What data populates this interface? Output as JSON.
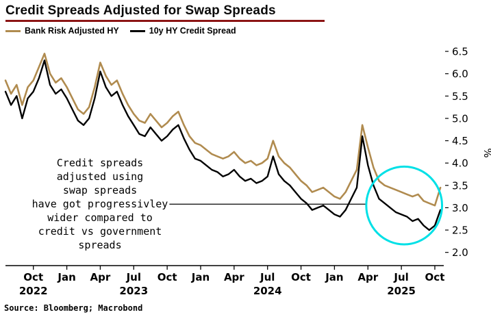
{
  "title": "Credit Spreads Adjusted for Swap Spreads",
  "legend": [
    {
      "label": "Bank Risk Adjusted HY",
      "color": "#B08B4F"
    },
    {
      "label": "10y HY Credit Spread",
      "color": "#000000"
    }
  ],
  "annotation": {
    "lines": [
      "Credit spreads",
      "adjusted using",
      "swap spreads",
      "have got progressivley",
      "wider compared to",
      "credit vs government",
      "spreads"
    ]
  },
  "source": "Source: Bloomberg; Macrobond",
  "accent_colors": {
    "title_underline": "#8B1414",
    "highlight": "#00E0E6"
  },
  "chart_data": {
    "type": "line",
    "title": "Credit Spreads Adjusted for Swap Spreads",
    "ylabel": "%",
    "ylim": [
      2.0,
      6.5
    ],
    "grid": false,
    "legend_position": "top-left",
    "y_ticks": [
      6.5,
      6.0,
      5.5,
      5.0,
      4.5,
      4.0,
      3.5,
      3.0,
      2.5,
      2.0
    ],
    "x_ticks": [
      "Oct",
      "Jan",
      "Apr",
      "Jul",
      "Oct",
      "Jan",
      "Apr",
      "Jul",
      "Oct",
      "Jan",
      "Apr",
      "Jul",
      "Oct"
    ],
    "x_years": [
      {
        "label": "2022",
        "tick": 0
      },
      {
        "label": "2023",
        "tick": 3
      },
      {
        "label": "2024",
        "tick": 7
      },
      {
        "label": "2025",
        "tick": 11
      }
    ],
    "series": [
      {
        "name": "Bank Risk Adjusted HY",
        "color": "#B08B4F",
        "width": 2.6,
        "values": [
          5.85,
          5.55,
          5.75,
          5.3,
          5.7,
          5.85,
          6.15,
          6.45,
          6.0,
          5.8,
          5.9,
          5.7,
          5.45,
          5.2,
          5.1,
          5.25,
          5.7,
          6.25,
          5.95,
          5.75,
          5.85,
          5.55,
          5.3,
          5.1,
          4.95,
          4.9,
          5.1,
          4.95,
          4.8,
          4.9,
          5.05,
          5.15,
          4.85,
          4.6,
          4.45,
          4.4,
          4.3,
          4.2,
          4.15,
          4.1,
          4.15,
          4.25,
          4.1,
          4.0,
          4.05,
          3.95,
          4.0,
          4.1,
          4.5,
          4.15,
          4.0,
          3.9,
          3.75,
          3.6,
          3.5,
          3.35,
          3.4,
          3.45,
          3.35,
          3.25,
          3.2,
          3.35,
          3.6,
          3.85,
          4.85,
          4.35,
          3.9,
          3.6,
          3.5,
          3.45,
          3.4,
          3.35,
          3.3,
          3.25,
          3.3,
          3.15,
          3.1,
          3.05,
          3.45
        ]
      },
      {
        "name": "10y HY Credit Spread",
        "color": "#000000",
        "width": 2.4,
        "values": [
          5.6,
          5.3,
          5.5,
          5.0,
          5.45,
          5.6,
          5.9,
          6.3,
          5.75,
          5.55,
          5.65,
          5.45,
          5.2,
          4.95,
          4.85,
          5.0,
          5.45,
          6.05,
          5.7,
          5.5,
          5.6,
          5.3,
          5.05,
          4.85,
          4.65,
          4.6,
          4.8,
          4.65,
          4.5,
          4.6,
          4.75,
          4.85,
          4.55,
          4.3,
          4.1,
          4.05,
          3.95,
          3.85,
          3.8,
          3.7,
          3.75,
          3.85,
          3.7,
          3.6,
          3.65,
          3.55,
          3.6,
          3.7,
          4.15,
          3.75,
          3.6,
          3.5,
          3.35,
          3.2,
          3.1,
          2.95,
          3.0,
          3.05,
          2.95,
          2.85,
          2.8,
          2.95,
          3.2,
          3.45,
          4.6,
          3.95,
          3.5,
          3.2,
          3.1,
          3.0,
          2.9,
          2.85,
          2.8,
          2.7,
          2.75,
          2.6,
          2.5,
          2.6,
          2.95
        ]
      }
    ],
    "leader_line": {
      "from_month": 14.7,
      "to_month": 32.3,
      "value": 3.08
    },
    "highlight": {
      "month": 35.75,
      "value": 3.05,
      "rx_months": 3.4,
      "ry_values": 0.87,
      "color": "#00E0E6"
    }
  }
}
